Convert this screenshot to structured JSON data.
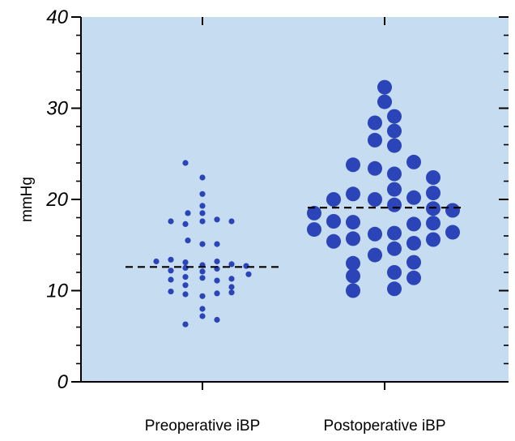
{
  "chart_data": {
    "type": "scatter",
    "subtype": "dot-plot",
    "title": "",
    "xlabel": "",
    "ylabel": "mmHg",
    "ylim": [
      0,
      40
    ],
    "yticks": [
      "0",
      "10",
      "20",
      "30",
      "40"
    ],
    "y_minor_step": 2,
    "grid": false,
    "background_color": "#c5dcf1",
    "marker_color": "#2b45b8",
    "median_line_style": "dashed",
    "categories": [
      "Preoperative iBP",
      "Postoperative iBP"
    ],
    "series": [
      {
        "category": "Preoperative iBP",
        "median": 12.6,
        "points": [
          {
            "dx": -0.07,
            "y": 24.0
          },
          {
            "dx": 0.0,
            "y": 22.4
          },
          {
            "dx": 0.0,
            "y": 20.6
          },
          {
            "dx": 0.0,
            "y": 19.3
          },
          {
            "dx": -0.06,
            "y": 18.5
          },
          {
            "dx": 0.0,
            "y": 18.5
          },
          {
            "dx": -0.13,
            "y": 17.6
          },
          {
            "dx": -0.07,
            "y": 17.3
          },
          {
            "dx": 0.0,
            "y": 17.6
          },
          {
            "dx": 0.06,
            "y": 17.8
          },
          {
            "dx": 0.12,
            "y": 17.6
          },
          {
            "dx": -0.06,
            "y": 15.5
          },
          {
            "dx": 0.0,
            "y": 15.1
          },
          {
            "dx": 0.06,
            "y": 15.1
          },
          {
            "dx": -0.19,
            "y": 13.2
          },
          {
            "dx": -0.13,
            "y": 13.4
          },
          {
            "dx": -0.07,
            "y": 13.1
          },
          {
            "dx": 0.0,
            "y": 12.8
          },
          {
            "dx": 0.06,
            "y": 13.2
          },
          {
            "dx": 0.12,
            "y": 12.9
          },
          {
            "dx": 0.18,
            "y": 12.7
          },
          {
            "dx": -0.13,
            "y": 12.2
          },
          {
            "dx": -0.07,
            "y": 12.5
          },
          {
            "dx": 0.0,
            "y": 12.1
          },
          {
            "dx": 0.06,
            "y": 12.4
          },
          {
            "dx": -0.13,
            "y": 11.2
          },
          {
            "dx": -0.07,
            "y": 11.5
          },
          {
            "dx": 0.0,
            "y": 11.4
          },
          {
            "dx": 0.06,
            "y": 11.1
          },
          {
            "dx": 0.12,
            "y": 11.3
          },
          {
            "dx": 0.19,
            "y": 11.8
          },
          {
            "dx": -0.07,
            "y": 10.6
          },
          {
            "dx": -0.13,
            "y": 9.9
          },
          {
            "dx": -0.07,
            "y": 9.6
          },
          {
            "dx": 0.0,
            "y": 9.4
          },
          {
            "dx": 0.06,
            "y": 9.7
          },
          {
            "dx": 0.12,
            "y": 9.8
          },
          {
            "dx": 0.12,
            "y": 10.4
          },
          {
            "dx": 0.0,
            "y": 8.0
          },
          {
            "dx": 0.0,
            "y": 7.2
          },
          {
            "dx": -0.07,
            "y": 6.3
          },
          {
            "dx": 0.06,
            "y": 6.8
          }
        ]
      },
      {
        "category": "Postoperative iBP",
        "median": 19.1,
        "points": [
          {
            "dx": 0.0,
            "y": 32.3
          },
          {
            "dx": 0.0,
            "y": 30.7
          },
          {
            "dx": 0.04,
            "y": 29.1
          },
          {
            "dx": -0.04,
            "y": 28.4
          },
          {
            "dx": 0.04,
            "y": 27.5
          },
          {
            "dx": -0.04,
            "y": 26.5
          },
          {
            "dx": 0.04,
            "y": 25.9
          },
          {
            "dx": 0.12,
            "y": 24.1
          },
          {
            "dx": -0.13,
            "y": 23.8
          },
          {
            "dx": -0.04,
            "y": 23.4
          },
          {
            "dx": 0.04,
            "y": 22.8
          },
          {
            "dx": 0.2,
            "y": 22.4
          },
          {
            "dx": 0.04,
            "y": 21.1
          },
          {
            "dx": -0.13,
            "y": 20.6
          },
          {
            "dx": 0.2,
            "y": 20.7
          },
          {
            "dx": 0.12,
            "y": 20.2
          },
          {
            "dx": -0.21,
            "y": 20.0
          },
          {
            "dx": -0.04,
            "y": 20.0
          },
          {
            "dx": 0.04,
            "y": 19.4
          },
          {
            "dx": 0.2,
            "y": 19.0
          },
          {
            "dx": 0.28,
            "y": 18.8
          },
          {
            "dx": -0.29,
            "y": 18.5
          },
          {
            "dx": -0.21,
            "y": 17.6
          },
          {
            "dx": -0.13,
            "y": 17.5
          },
          {
            "dx": 0.12,
            "y": 17.3
          },
          {
            "dx": 0.2,
            "y": 17.4
          },
          {
            "dx": -0.29,
            "y": 16.7
          },
          {
            "dx": -0.04,
            "y": 16.2
          },
          {
            "dx": 0.04,
            "y": 16.3
          },
          {
            "dx": 0.28,
            "y": 16.4
          },
          {
            "dx": -0.13,
            "y": 15.7
          },
          {
            "dx": -0.21,
            "y": 15.4
          },
          {
            "dx": 0.12,
            "y": 15.2
          },
          {
            "dx": 0.2,
            "y": 15.6
          },
          {
            "dx": 0.04,
            "y": 14.6
          },
          {
            "dx": -0.04,
            "y": 13.9
          },
          {
            "dx": 0.12,
            "y": 13.1
          },
          {
            "dx": -0.13,
            "y": 13.0
          },
          {
            "dx": 0.04,
            "y": 12.0
          },
          {
            "dx": -0.13,
            "y": 11.6
          },
          {
            "dx": 0.12,
            "y": 11.4
          },
          {
            "dx": 0.04,
            "y": 10.2
          },
          {
            "dx": -0.13,
            "y": 10.0
          }
        ]
      }
    ]
  }
}
